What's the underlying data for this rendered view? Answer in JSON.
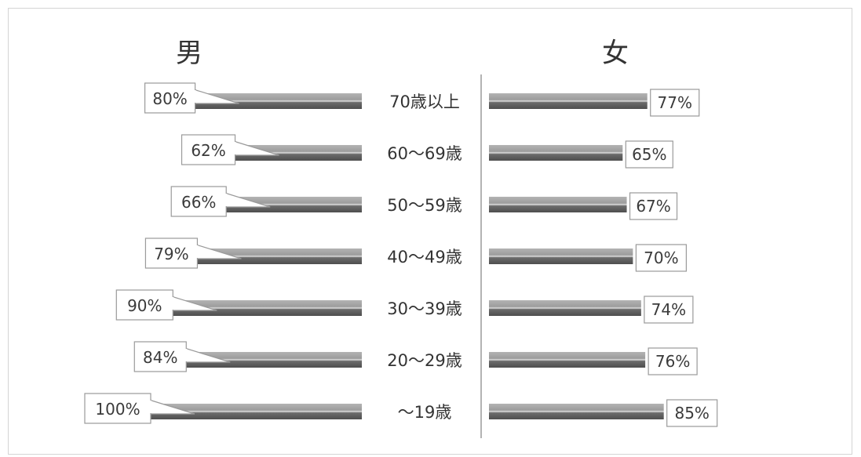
{
  "chart_data": {
    "type": "bar",
    "orientation": "horizontal-butterfly",
    "categories": [
      "70歳以上",
      "60〜69歳",
      "50〜59歳",
      "40〜49歳",
      "30〜39歳",
      "20〜29歳",
      "〜19歳"
    ],
    "series": [
      {
        "name": "男",
        "values": [
          80,
          62,
          66,
          79,
          90,
          84,
          100
        ],
        "labels": [
          "80%",
          "62%",
          "66%",
          "79%",
          "90%",
          "84%",
          "100%"
        ]
      },
      {
        "name": "女",
        "values": [
          77,
          65,
          67,
          70,
          74,
          76,
          85
        ],
        "labels": [
          "77%",
          "65%",
          "67%",
          "70%",
          "74%",
          "76%",
          "85%"
        ]
      }
    ],
    "xlim": [
      0,
      100
    ],
    "grid": false,
    "legend": "none",
    "colors": {
      "bar_dark": "#5f5f5f",
      "bar_light": "#a9a9a9",
      "stripe": "#dddddd",
      "divider": "#9a9a9a"
    }
  }
}
